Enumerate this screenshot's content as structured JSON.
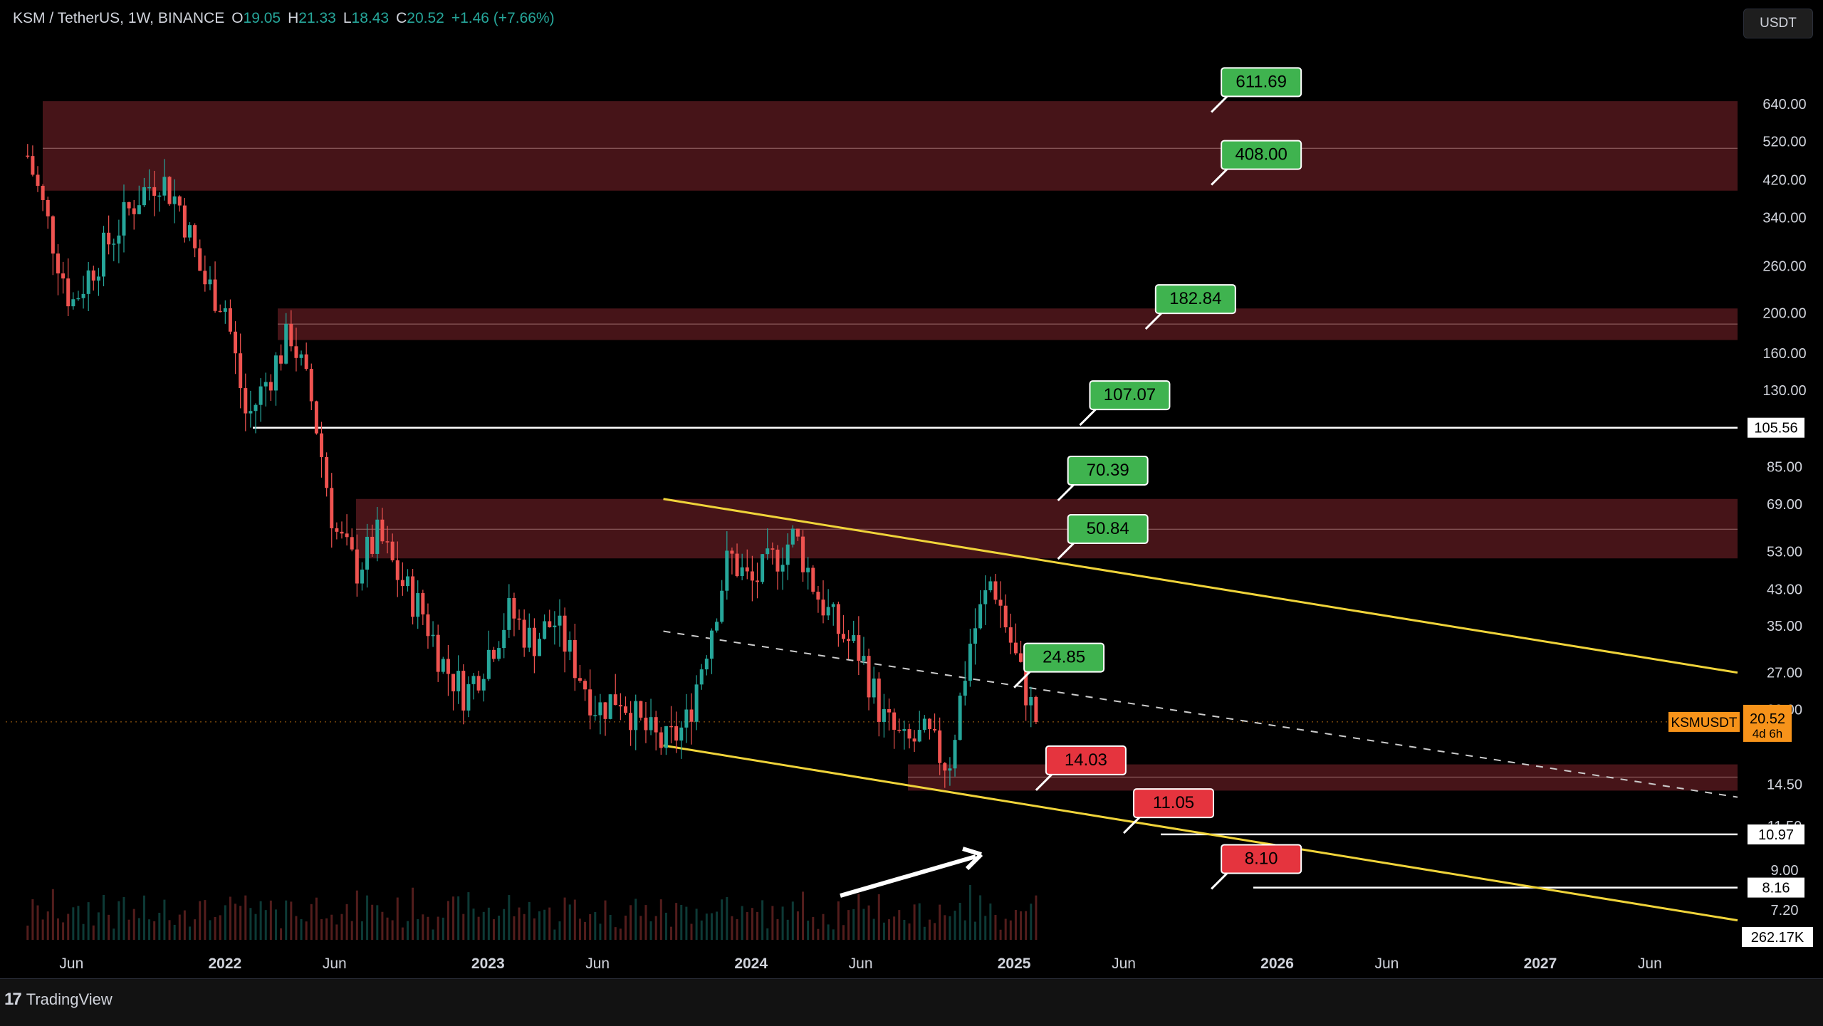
{
  "header": {
    "symbol": "KSM / TetherUS, 1W, BINANCE",
    "o_label": "O",
    "o_value": "19.05",
    "h_label": "H",
    "h_value": "21.33",
    "l_label": "L",
    "l_value": "18.43",
    "c_label": "C",
    "c_value": "20.52",
    "change": "+1.46 (+7.66%)"
  },
  "currency_button": "USDT",
  "footer": {
    "brand": "TradingView"
  },
  "colors": {
    "up": "#26a69a",
    "down": "#ef5350",
    "zone": "#4a1519",
    "channel": "#f0d43a",
    "label_green": "#3fb34f",
    "label_red": "#e5343e",
    "price_tag": "#f7931a"
  },
  "chart_data": {
    "type": "candlestick",
    "y_scale": "log",
    "ylim": [
      6.1,
      900
    ],
    "x_range": [
      "2021-03",
      "2027-10"
    ],
    "y_ticks": [
      "640.00",
      "520.00",
      "420.00",
      "340.00",
      "260.00",
      "200.00",
      "160.00",
      "130.00",
      "85.00",
      "69.00",
      "53.00",
      "43.00",
      "35.00",
      "27.00",
      "22.00",
      "14.50",
      "11.50",
      "9.00",
      "7.20"
    ],
    "x_ticks": [
      "Jun",
      "2022",
      "Jun",
      "2023",
      "Jun",
      "2024",
      "Jun",
      "2025",
      "Jun",
      "2026",
      "Jun",
      "2027",
      "Jun"
    ],
    "price_path": [
      [
        "2021-04",
        480
      ],
      [
        "2021-05",
        320
      ],
      [
        "2021-06",
        210
      ],
      [
        "2021-07",
        260
      ],
      [
        "2021-09",
        380
      ],
      [
        "2021-10",
        430
      ],
      [
        "2021-11",
        360
      ],
      [
        "2021-12",
        240
      ],
      [
        "2022-01",
        210
      ],
      [
        "2022-02",
        110
      ],
      [
        "2022-04",
        180
      ],
      [
        "2022-05",
        120
      ],
      [
        "2022-06",
        60
      ],
      [
        "2022-07",
        48
      ],
      [
        "2022-08",
        58
      ],
      [
        "2022-09",
        45
      ],
      [
        "2022-10",
        38
      ],
      [
        "2022-11",
        28
      ],
      [
        "2022-12",
        24
      ],
      [
        "2023-02",
        38
      ],
      [
        "2023-03",
        32
      ],
      [
        "2023-04",
        36
      ],
      [
        "2023-05",
        28
      ],
      [
        "2023-06",
        22
      ],
      [
        "2023-07",
        24
      ],
      [
        "2023-08",
        20
      ],
      [
        "2023-09",
        18
      ],
      [
        "2023-10",
        20
      ],
      [
        "2023-11",
        32
      ],
      [
        "2023-12",
        52
      ],
      [
        "2024-01",
        44
      ],
      [
        "2024-03",
        58
      ],
      [
        "2024-04",
        42
      ],
      [
        "2024-05",
        34
      ],
      [
        "2024-06",
        30
      ],
      [
        "2024-07",
        21
      ],
      [
        "2024-08",
        18
      ],
      [
        "2024-09",
        19
      ],
      [
        "2024-10",
        16
      ],
      [
        "2024-11",
        32
      ],
      [
        "2024-12",
        46
      ],
      [
        "2025-01",
        30
      ],
      [
        "2025-02",
        20.52
      ]
    ],
    "last_close": 20.52,
    "volume_max_label": "262.17K",
    "resistance_zones": [
      {
        "low": 395,
        "high": 650,
        "mid": 500
      },
      {
        "low": 172,
        "high": 205,
        "mid": 188
      },
      {
        "low": 51,
        "high": 71,
        "mid": 60
      },
      {
        "low": 14.0,
        "high": 16.2,
        "mid": 15.1
      }
    ],
    "horizontal_levels": [
      {
        "value": 105.56,
        "label": "105.56"
      },
      {
        "value": 10.97,
        "label": "10.97"
      },
      {
        "value": 8.16,
        "label": "8.16"
      }
    ],
    "channel_upper": [
      [
        "2023-09",
        71
      ],
      [
        "2027-10",
        27
      ]
    ],
    "channel_lower": [
      [
        "2023-09",
        18
      ],
      [
        "2027-10",
        6.8
      ]
    ],
    "channel_mid": [
      [
        "2023-09",
        34
      ],
      [
        "2027-10",
        13.5
      ]
    ],
    "target_labels": [
      {
        "text": "611.69",
        "value": 611.69,
        "color": "green",
        "x": "2025-10"
      },
      {
        "text": "408.00",
        "value": 408.0,
        "color": "green",
        "x": "2025-10"
      },
      {
        "text": "182.84",
        "value": 182.84,
        "color": "green",
        "x": "2025-07"
      },
      {
        "text": "107.07",
        "value": 107.07,
        "color": "green",
        "x": "2025-04"
      },
      {
        "text": "70.39",
        "value": 70.39,
        "color": "green",
        "x": "2025-03"
      },
      {
        "text": "50.84",
        "value": 50.84,
        "color": "green",
        "x": "2025-03"
      },
      {
        "text": "24.85",
        "value": 24.85,
        "color": "green",
        "x": "2025-01"
      },
      {
        "text": "14.03",
        "value": 14.03,
        "color": "red",
        "x": "2025-02"
      },
      {
        "text": "11.05",
        "value": 11.05,
        "color": "red",
        "x": "2025-06"
      },
      {
        "text": "8.10",
        "value": 8.1,
        "color": "red",
        "x": "2025-10"
      }
    ],
    "price_tag": {
      "symbol": "KSMUSDT",
      "price": "20.52",
      "countdown": "4d 6h"
    }
  }
}
